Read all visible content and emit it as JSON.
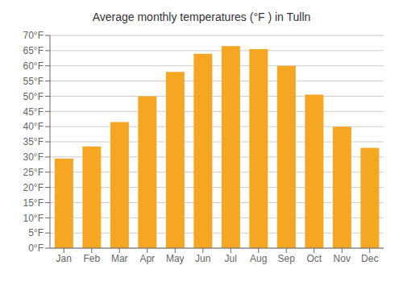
{
  "chart_data": {
    "type": "bar",
    "title": "Average monthly temperatures (°F ) in Tulln",
    "categories": [
      "Jan",
      "Feb",
      "Mar",
      "Apr",
      "May",
      "Jun",
      "Jul",
      "Aug",
      "Sep",
      "Oct",
      "Nov",
      "Dec"
    ],
    "values": [
      29.5,
      33.5,
      41.5,
      50.0,
      58.0,
      64.0,
      66.5,
      65.5,
      60.0,
      50.5,
      40.0,
      33.0
    ],
    "color": "#F5A623",
    "ylim": [
      0,
      70
    ],
    "yticks": [
      {
        "value": 0,
        "label": "0°F"
      },
      {
        "value": 5,
        "label": "5°F"
      },
      {
        "value": 10,
        "label": "10°F"
      },
      {
        "value": 15,
        "label": "15°F"
      },
      {
        "value": 20,
        "label": "20°F"
      },
      {
        "value": 25,
        "label": "25°F"
      },
      {
        "value": 30,
        "label": "30°F"
      },
      {
        "value": 35,
        "label": "35°F"
      },
      {
        "value": 40,
        "label": "40°F"
      },
      {
        "value": 45,
        "label": "45°F"
      },
      {
        "value": 50,
        "label": "50°F"
      },
      {
        "value": 55,
        "label": "55°F"
      },
      {
        "value": 60,
        "label": "60°F"
      },
      {
        "value": 65,
        "label": "65°F"
      },
      {
        "value": 70,
        "label": "70°F"
      }
    ],
    "grid": true
  }
}
